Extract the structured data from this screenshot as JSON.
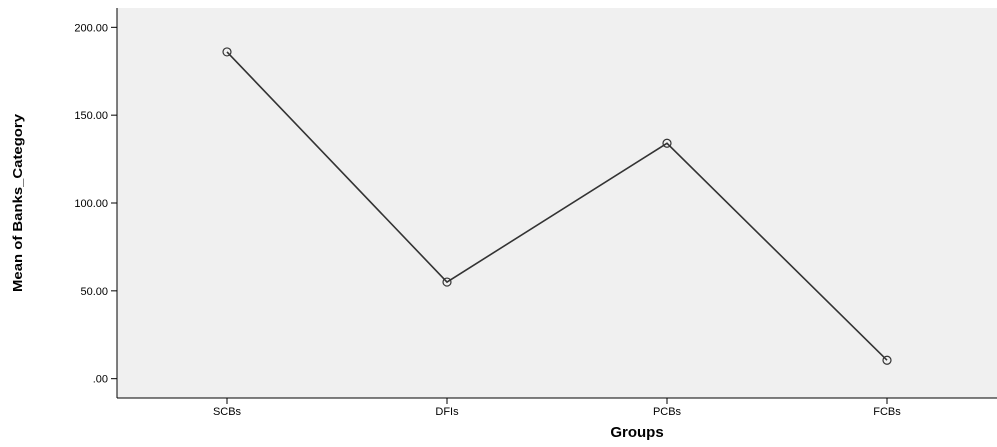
{
  "chart_data": {
    "type": "line",
    "title": "",
    "xlabel": "Groups",
    "ylabel": "Mean of Banks_Category",
    "categories": [
      "SCBs",
      "DFIs",
      "PCBs",
      "FCBs"
    ],
    "series": [
      {
        "values": [
          186,
          55,
          134,
          10.5
        ]
      }
    ],
    "ylim": [
      -11,
      211
    ],
    "yticks": [
      {
        "value": 0,
        "label": ".00"
      },
      {
        "value": 50,
        "label": "50.00"
      },
      {
        "value": 100,
        "label": "100.00"
      },
      {
        "value": 150,
        "label": "150.00"
      },
      {
        "value": 200,
        "label": "200.00"
      }
    ],
    "grid": false,
    "legend": "none",
    "marker": "open-circle",
    "colors": {
      "plot_background": "#f0f0f0",
      "line": "#333333",
      "axis": "#000000"
    }
  }
}
